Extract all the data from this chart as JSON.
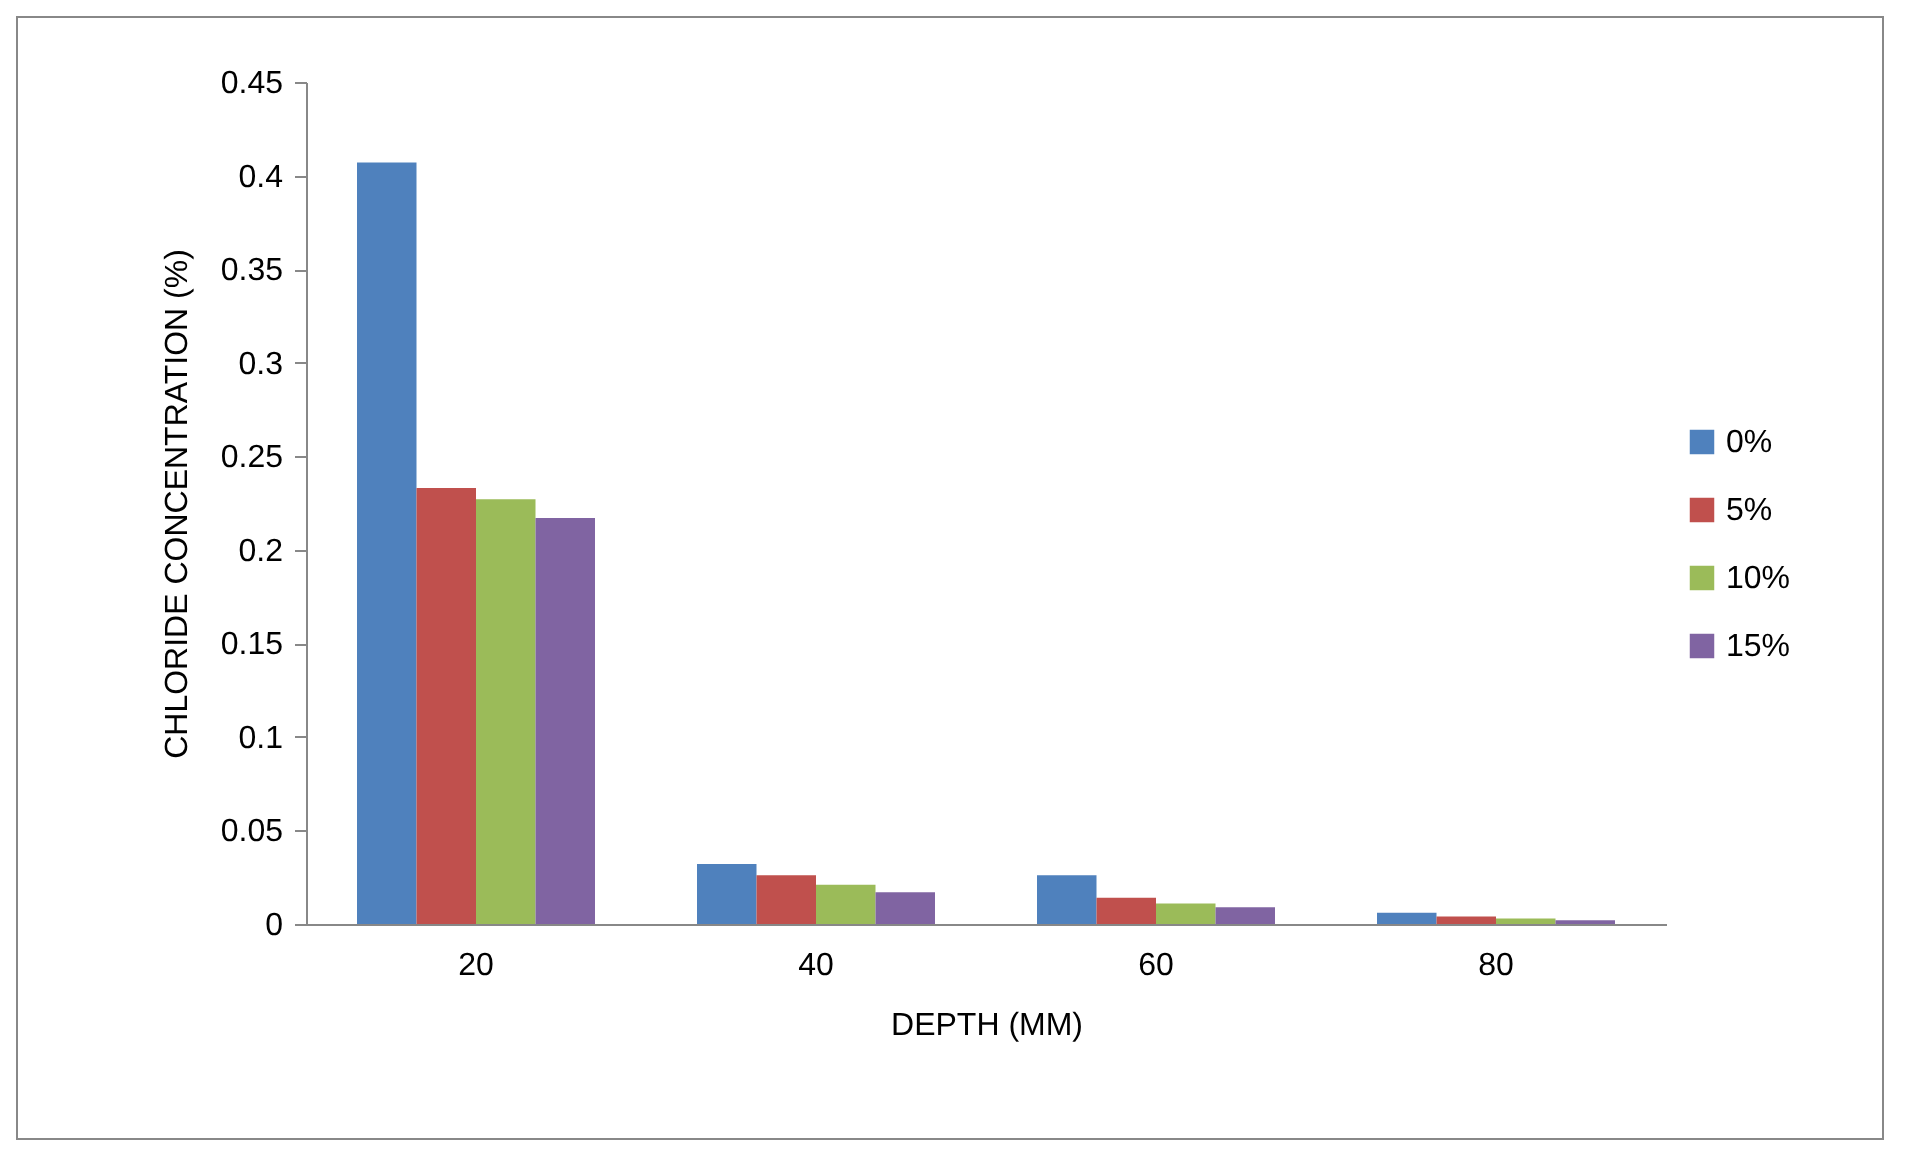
{
  "chart_data": {
    "type": "bar",
    "xlabel": "DEPTH (MM)",
    "ylabel": "CHLORIDE CONCENTRATION (%)",
    "categories": [
      "20",
      "40",
      "60",
      "80"
    ],
    "series": [
      {
        "name": "0%",
        "color": "#4f81bd",
        "values": [
          0.407,
          0.032,
          0.026,
          0.006
        ]
      },
      {
        "name": "5%",
        "color": "#c0504d",
        "values": [
          0.233,
          0.026,
          0.014,
          0.004
        ]
      },
      {
        "name": "10%",
        "color": "#9bbb59",
        "values": [
          0.227,
          0.021,
          0.011,
          0.003
        ]
      },
      {
        "name": "15%",
        "color": "#8064a2",
        "values": [
          0.217,
          0.017,
          0.009,
          0.002
        ]
      }
    ],
    "ylim": [
      0,
      0.45
    ],
    "yticks": [
      0,
      0.05,
      0.1,
      0.15,
      0.2,
      0.25,
      0.3,
      0.35,
      0.4,
      0.45
    ],
    "grid": false,
    "legend": "right"
  }
}
